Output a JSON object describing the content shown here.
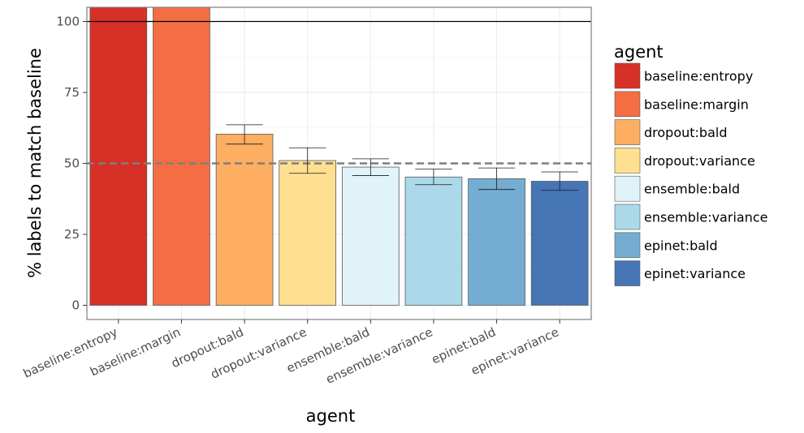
{
  "chart_data": {
    "type": "bar",
    "title": "",
    "xlabel": "agent",
    "ylabel": "% labels to match baseline",
    "categories": [
      "baseline:entropy",
      "baseline:margin",
      "dropout:bald",
      "dropout:variance",
      "ensemble:bald",
      "ensemble:variance",
      "epinet:bald",
      "epinet:variance"
    ],
    "values": [
      105,
      105,
      60.3,
      51.0,
      48.7,
      45.2,
      44.6,
      43.7
    ],
    "error_low": [
      null,
      null,
      56.8,
      46.5,
      45.7,
      42.5,
      40.8,
      40.5
    ],
    "error_high": [
      null,
      null,
      63.6,
      55.5,
      51.6,
      48.0,
      48.4,
      47.0
    ],
    "colors": [
      "#d73027",
      "#f46d43",
      "#fdae61",
      "#fee090",
      "#e0f3f8",
      "#abd9e9",
      "#74add1",
      "#4575b4"
    ],
    "ylim": [
      -5,
      105
    ],
    "yticks": [
      0,
      25,
      50,
      75,
      100
    ],
    "reference_lines": [
      {
        "y": 100,
        "style": "solid",
        "color": "#000000"
      },
      {
        "y": 50,
        "style": "dashed",
        "color": "#7f7f7f"
      }
    ],
    "grid": true,
    "legend": {
      "title": "agent",
      "position": "right",
      "entries": [
        "baseline:entropy",
        "baseline:margin",
        "dropout:bald",
        "dropout:variance",
        "ensemble:bald",
        "ensemble:variance",
        "epinet:bald",
        "epinet:variance"
      ]
    }
  }
}
